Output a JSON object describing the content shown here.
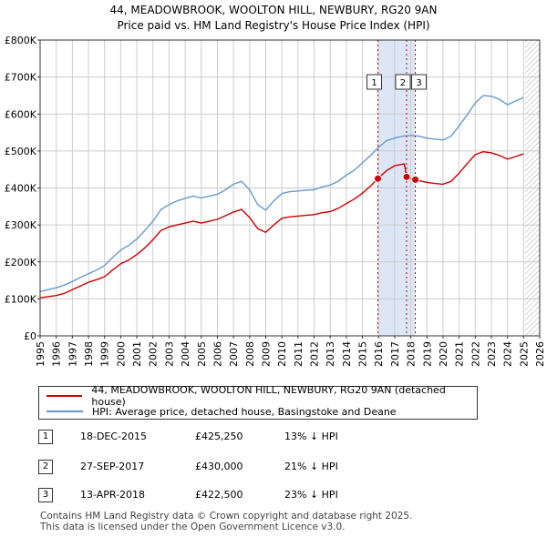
{
  "colors": {
    "price_line": "#cc0000",
    "hpi_line": "#6699cc",
    "highlight_band": "#dde6f7",
    "future_hatch": "#aaaaaa",
    "grid": "#cccccc"
  },
  "chart_data": {
    "type": "line",
    "title": "44, MEADOWBROOK, WOOLTON HILL, NEWBURY, RG20 9AN",
    "subtitle": "Price paid vs. HM Land Registry's House Price Index (HPI)",
    "xlim": [
      1995,
      2026
    ],
    "ylim": [
      0,
      800000
    ],
    "x_ticks": [
      1995,
      1996,
      1997,
      1998,
      1999,
      2000,
      2001,
      2002,
      2003,
      2004,
      2005,
      2006,
      2007,
      2008,
      2009,
      2010,
      2011,
      2012,
      2013,
      2014,
      2015,
      2016,
      2017,
      2018,
      2019,
      2020,
      2021,
      2022,
      2023,
      2024,
      2025,
      2026
    ],
    "y_ticks": [
      {
        "value": 0,
        "label": "£0"
      },
      {
        "value": 100000,
        "label": "£100K"
      },
      {
        "value": 200000,
        "label": "£200K"
      },
      {
        "value": 300000,
        "label": "£300K"
      },
      {
        "value": 400000,
        "label": "£400K"
      },
      {
        "value": 500000,
        "label": "£500K"
      },
      {
        "value": 600000,
        "label": "£600K"
      },
      {
        "value": 700000,
        "label": "£700K"
      },
      {
        "value": 800000,
        "label": "£800K"
      }
    ],
    "grid": true,
    "highlight_range": [
      2015.96,
      2018.28
    ],
    "future_start": 2025.1,
    "series": [
      {
        "name": "hpi",
        "x": [
          1995.0,
          1995.5,
          1996.0,
          1996.5,
          1997.0,
          1997.5,
          1998.0,
          1998.5,
          1999.0,
          1999.5,
          2000.0,
          2000.5,
          2001.0,
          2001.5,
          2002.0,
          2002.5,
          2003.0,
          2003.5,
          2004.0,
          2004.5,
          2005.0,
          2005.5,
          2006.0,
          2006.5,
          2007.0,
          2007.5,
          2008.0,
          2008.5,
          2009.0,
          2009.5,
          2010.0,
          2010.5,
          2011.0,
          2011.5,
          2012.0,
          2012.5,
          2013.0,
          2013.5,
          2014.0,
          2014.5,
          2015.0,
          2015.5,
          2016.0,
          2016.5,
          2017.0,
          2017.5,
          2018.0,
          2018.5,
          2019.0,
          2019.5,
          2020.0,
          2020.5,
          2021.0,
          2021.5,
          2022.0,
          2022.5,
          2023.0,
          2023.5,
          2024.0,
          2024.5,
          2025.0
        ],
        "y": [
          120000,
          125000,
          130000,
          137000,
          147000,
          158000,
          168000,
          178000,
          190000,
          212000,
          232000,
          245000,
          262000,
          285000,
          310000,
          342000,
          355000,
          365000,
          372000,
          378000,
          373000,
          378000,
          383000,
          395000,
          410000,
          418000,
          395000,
          355000,
          340000,
          365000,
          385000,
          390000,
          392000,
          394000,
          395000,
          403000,
          408000,
          418000,
          435000,
          448000,
          468000,
          488000,
          510000,
          528000,
          535000,
          540000,
          542000,
          540000,
          535000,
          532000,
          530000,
          540000,
          568000,
          598000,
          630000,
          650000,
          648000,
          640000,
          625000,
          635000,
          645000
        ]
      },
      {
        "name": "price",
        "x": [
          1995.0,
          1995.5,
          1996.0,
          1996.5,
          1997.0,
          1997.5,
          1998.0,
          1998.5,
          1999.0,
          1999.5,
          2000.0,
          2000.5,
          2001.0,
          2001.5,
          2002.0,
          2002.5,
          2003.0,
          2003.5,
          2004.0,
          2004.5,
          2005.0,
          2005.5,
          2006.0,
          2006.5,
          2007.0,
          2007.5,
          2008.0,
          2008.5,
          2009.0,
          2009.5,
          2010.0,
          2010.5,
          2011.0,
          2011.5,
          2012.0,
          2012.5,
          2013.0,
          2013.5,
          2014.0,
          2014.5,
          2015.0,
          2015.5,
          2015.96,
          2016.5,
          2017.0,
          2017.6,
          2017.74,
          2018.28,
          2018.5,
          2019.0,
          2019.5,
          2020.0,
          2020.5,
          2021.0,
          2021.5,
          2022.0,
          2022.5,
          2023.0,
          2023.5,
          2024.0,
          2024.5,
          2025.0
        ],
        "y": [
          103000,
          106000,
          109000,
          115000,
          125000,
          135000,
          145000,
          152000,
          160000,
          178000,
          195000,
          205000,
          220000,
          238000,
          260000,
          285000,
          295000,
          300000,
          305000,
          310000,
          305000,
          310000,
          315000,
          325000,
          335000,
          342000,
          320000,
          290000,
          280000,
          300000,
          318000,
          322000,
          324000,
          326000,
          328000,
          333000,
          336000,
          345000,
          358000,
          370000,
          386000,
          405000,
          425250,
          447000,
          460000,
          465000,
          430000,
          422500,
          420000,
          415000,
          412000,
          410000,
          418000,
          440000,
          466000,
          490000,
          498000,
          495000,
          488000,
          478000,
          485000,
          492000
        ]
      }
    ],
    "sales": [
      {
        "id": "1",
        "x": 2015.96,
        "price": 425250
      },
      {
        "id": "2",
        "x": 2017.74,
        "price": 430000
      },
      {
        "id": "3",
        "x": 2018.28,
        "price": 422500
      }
    ]
  },
  "legend": {
    "price_label": "44, MEADOWBROOK, WOOLTON HILL, NEWBURY, RG20 9AN (detached house)",
    "hpi_label": "HPI: Average price, detached house, Basingstoke and Deane"
  },
  "transactions": [
    {
      "num": "1",
      "date": "18-DEC-2015",
      "price": "£425,250",
      "hpi": "13% ↓ HPI"
    },
    {
      "num": "2",
      "date": "27-SEP-2017",
      "price": "£430,000",
      "hpi": "21% ↓ HPI"
    },
    {
      "num": "3",
      "date": "13-APR-2018",
      "price": "£422,500",
      "hpi": "23% ↓ HPI"
    }
  ],
  "footer": {
    "line1": "Contains HM Land Registry data © Crown copyright and database right 2025.",
    "line2": "This data is licensed under the Open Government Licence v3.0."
  }
}
